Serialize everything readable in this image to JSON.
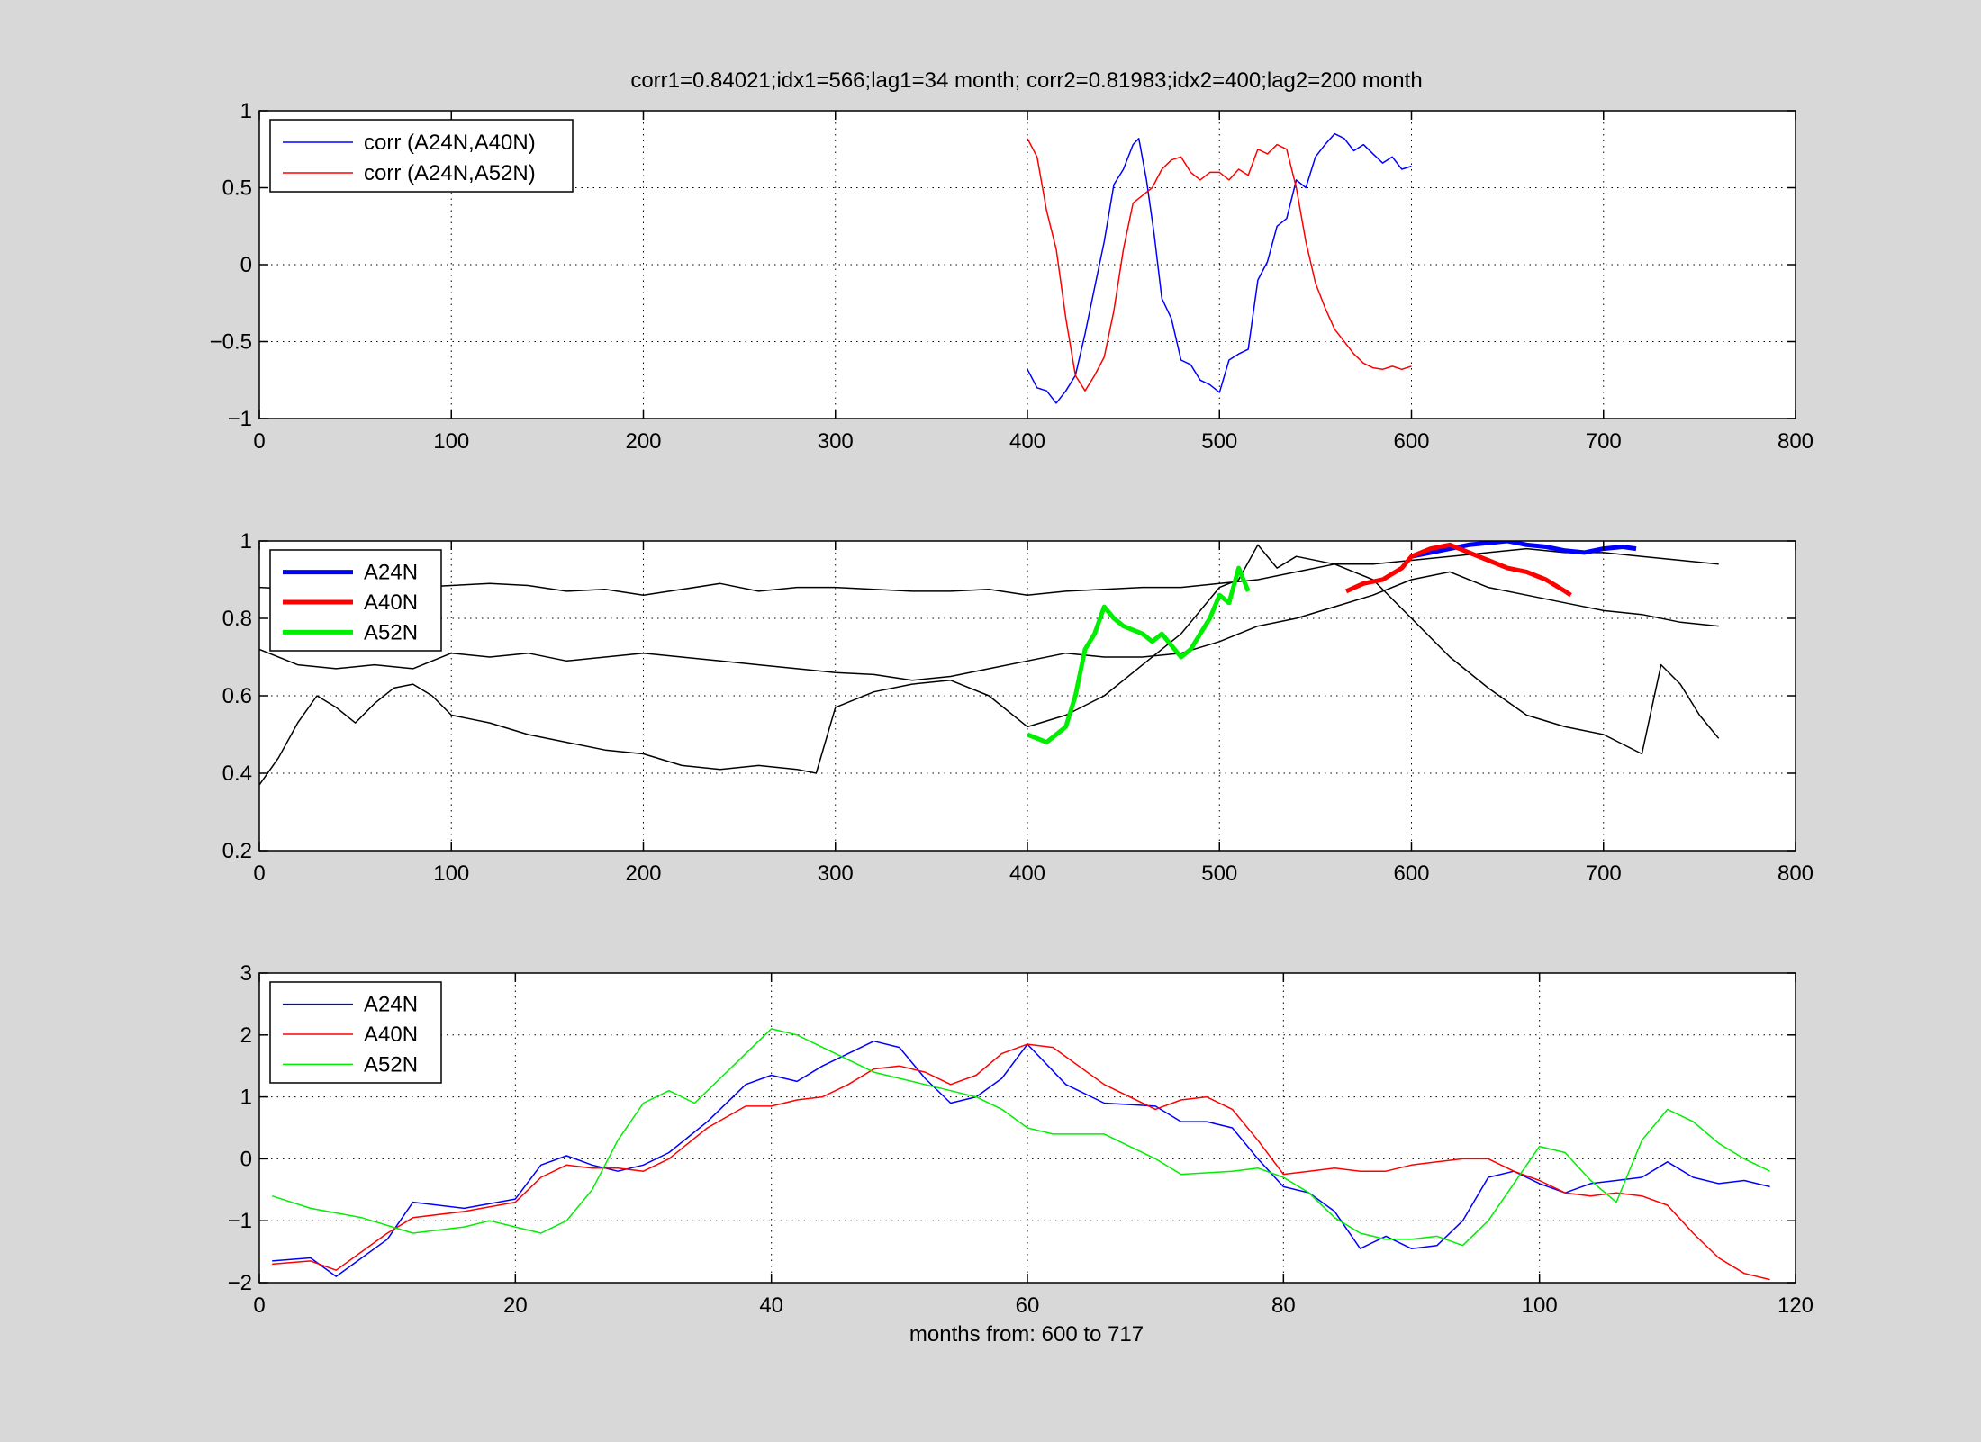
{
  "figure": {
    "title": "corr1=0.84021;idx1=566;lag1=34 month;   corr2=0.81983;idx2=400;lag2=200 month",
    "xlabel_bottom": "months from: 600 to 717"
  },
  "chart_data": [
    {
      "type": "line",
      "title": "corr1=0.84021;idx1=566;lag1=34 month;   corr2=0.81983;idx2=400;lag2=200 month",
      "xlim": [
        0,
        800
      ],
      "ylim": [
        -1,
        1
      ],
      "xticks": [
        0,
        100,
        200,
        300,
        400,
        500,
        600,
        700,
        800
      ],
      "yticks": [
        -1,
        -0.5,
        0,
        0.5,
        1
      ],
      "yticklabels": [
        "−1",
        "−0.5",
        "0",
        "0.5",
        "1"
      ],
      "grid": true,
      "legend": "top-left",
      "series": [
        {
          "name": "corr (A24N,A40N)",
          "color": "#0000ff",
          "width": 1.5,
          "x": [
            400,
            405,
            410,
            415,
            420,
            425,
            430,
            435,
            440,
            445,
            450,
            455,
            458,
            462,
            466,
            470,
            475,
            480,
            485,
            490,
            495,
            500,
            505,
            510,
            515,
            520,
            525,
            530,
            535,
            540,
            545,
            550,
            555,
            560,
            565,
            570,
            575,
            580,
            585,
            590,
            595,
            600
          ],
          "y": [
            -0.68,
            -0.8,
            -0.82,
            -0.9,
            -0.82,
            -0.72,
            -0.45,
            -0.15,
            0.15,
            0.52,
            0.62,
            0.78,
            0.82,
            0.55,
            0.2,
            -0.22,
            -0.35,
            -0.62,
            -0.65,
            -0.75,
            -0.78,
            -0.83,
            -0.62,
            -0.58,
            -0.55,
            -0.1,
            0.02,
            0.25,
            0.3,
            0.55,
            0.5,
            0.7,
            0.78,
            0.85,
            0.82,
            0.74,
            0.78,
            0.72,
            0.66,
            0.7,
            0.62,
            0.64
          ]
        },
        {
          "name": "corr (A24N,A52N)",
          "color": "#ff0000",
          "width": 1.5,
          "x": [
            400,
            405,
            410,
            415,
            420,
            425,
            430,
            435,
            440,
            445,
            450,
            455,
            460,
            465,
            470,
            475,
            480,
            485,
            490,
            495,
            500,
            505,
            510,
            515,
            520,
            525,
            530,
            535,
            540,
            545,
            550,
            555,
            560,
            565,
            570,
            575,
            580,
            585,
            590,
            595,
            600
          ],
          "y": [
            0.82,
            0.7,
            0.35,
            0.1,
            -0.35,
            -0.72,
            -0.82,
            -0.72,
            -0.6,
            -0.3,
            0.1,
            0.4,
            0.45,
            0.5,
            0.62,
            0.68,
            0.7,
            0.6,
            0.55,
            0.6,
            0.6,
            0.55,
            0.62,
            0.58,
            0.75,
            0.72,
            0.78,
            0.75,
            0.5,
            0.15,
            -0.12,
            -0.28,
            -0.42,
            -0.5,
            -0.58,
            -0.64,
            -0.67,
            -0.68,
            -0.66,
            -0.68,
            -0.66
          ]
        }
      ]
    },
    {
      "type": "line",
      "xlim": [
        0,
        800
      ],
      "ylim": [
        0.2,
        1
      ],
      "xticks": [
        0,
        100,
        200,
        300,
        400,
        500,
        600,
        700,
        800
      ],
      "yticks": [
        0.2,
        0.4,
        0.6,
        0.8,
        1
      ],
      "yticklabels": [
        "0.2",
        "0.4",
        "0.6",
        "0.8",
        "1"
      ],
      "grid": true,
      "legend": "top-left",
      "series": [
        {
          "color": "#000000",
          "width": 1.5,
          "x": [
            0,
            20,
            40,
            60,
            80,
            100,
            120,
            140,
            160,
            180,
            200,
            220,
            240,
            260,
            280,
            300,
            320,
            340,
            360,
            380,
            400,
            420,
            440,
            460,
            480,
            500,
            520,
            540,
            560,
            580,
            600,
            620,
            640,
            660,
            680,
            700,
            720,
            740,
            760
          ],
          "y": [
            0.88,
            0.875,
            0.88,
            0.875,
            0.88,
            0.885,
            0.89,
            0.885,
            0.87,
            0.875,
            0.86,
            0.875,
            0.89,
            0.87,
            0.88,
            0.88,
            0.875,
            0.87,
            0.87,
            0.875,
            0.86,
            0.87,
            0.875,
            0.88,
            0.88,
            0.89,
            0.9,
            0.92,
            0.94,
            0.94,
            0.95,
            0.96,
            0.97,
            0.98,
            0.97,
            0.97,
            0.96,
            0.95,
            0.94
          ]
        },
        {
          "color": "#000000",
          "width": 1.5,
          "x": [
            0,
            20,
            40,
            60,
            80,
            100,
            120,
            140,
            160,
            180,
            200,
            220,
            240,
            260,
            280,
            300,
            320,
            340,
            360,
            380,
            400,
            420,
            440,
            460,
            480,
            500,
            520,
            540,
            560,
            580,
            600,
            620,
            640,
            660,
            680,
            700,
            720,
            740,
            760
          ],
          "y": [
            0.72,
            0.68,
            0.67,
            0.68,
            0.67,
            0.71,
            0.7,
            0.71,
            0.69,
            0.7,
            0.71,
            0.7,
            0.69,
            0.68,
            0.67,
            0.66,
            0.655,
            0.64,
            0.65,
            0.67,
            0.69,
            0.71,
            0.7,
            0.7,
            0.71,
            0.74,
            0.78,
            0.8,
            0.83,
            0.86,
            0.9,
            0.92,
            0.88,
            0.86,
            0.84,
            0.82,
            0.81,
            0.79,
            0.78
          ]
        },
        {
          "color": "#000000",
          "width": 1.5,
          "x": [
            0,
            10,
            20,
            30,
            40,
            50,
            60,
            70,
            80,
            90,
            100,
            110,
            120,
            140,
            160,
            180,
            200,
            220,
            240,
            260,
            280,
            290,
            300,
            320,
            340,
            360,
            380,
            400,
            420,
            440,
            460,
            480,
            500,
            510,
            520,
            530,
            540,
            560,
            580,
            600,
            620,
            640,
            660,
            680,
            700,
            720,
            730,
            740,
            750,
            760
          ],
          "y": [
            0.37,
            0.44,
            0.53,
            0.6,
            0.57,
            0.53,
            0.58,
            0.62,
            0.63,
            0.6,
            0.55,
            0.54,
            0.53,
            0.5,
            0.48,
            0.46,
            0.45,
            0.42,
            0.41,
            0.42,
            0.41,
            0.4,
            0.57,
            0.61,
            0.63,
            0.64,
            0.6,
            0.52,
            0.55,
            0.6,
            0.68,
            0.76,
            0.88,
            0.9,
            0.99,
            0.93,
            0.96,
            0.94,
            0.9,
            0.8,
            0.7,
            0.62,
            0.55,
            0.52,
            0.5,
            0.45,
            0.68,
            0.63,
            0.55,
            0.49
          ]
        },
        {
          "name": "A24N",
          "color": "#0000ff",
          "width": 5,
          "x": [
            600,
            610,
            620,
            630,
            640,
            650,
            660,
            670,
            680,
            690,
            700,
            710,
            717
          ],
          "y": [
            0.96,
            0.97,
            0.98,
            0.99,
            0.995,
            1.0,
            0.99,
            0.985,
            0.975,
            0.97,
            0.98,
            0.985,
            0.98
          ]
        },
        {
          "name": "A40N",
          "color": "#ff0000",
          "width": 5,
          "x": [
            566,
            575,
            585,
            595,
            600,
            610,
            620,
            630,
            640,
            650,
            660,
            670,
            680,
            683
          ],
          "y": [
            0.87,
            0.89,
            0.9,
            0.93,
            0.96,
            0.98,
            0.99,
            0.97,
            0.95,
            0.93,
            0.92,
            0.9,
            0.87,
            0.86
          ]
        },
        {
          "name": "A52N",
          "color": "#00ee00",
          "width": 5,
          "x": [
            400,
            405,
            410,
            415,
            420,
            425,
            430,
            435,
            440,
            445,
            450,
            455,
            460,
            465,
            470,
            475,
            480,
            485,
            490,
            495,
            500,
            505,
            510,
            515
          ],
          "y": [
            0.5,
            0.49,
            0.48,
            0.5,
            0.52,
            0.6,
            0.72,
            0.76,
            0.83,
            0.8,
            0.78,
            0.77,
            0.76,
            0.74,
            0.76,
            0.73,
            0.7,
            0.72,
            0.76,
            0.8,
            0.86,
            0.84,
            0.93,
            0.87
          ]
        }
      ]
    },
    {
      "type": "line",
      "xlabel": "months from: 600 to 717",
      "xlim": [
        0,
        120
      ],
      "ylim": [
        -2,
        3
      ],
      "xticks": [
        0,
        20,
        40,
        60,
        80,
        100,
        120
      ],
      "yticks": [
        -2,
        -1,
        0,
        1,
        2,
        3
      ],
      "yticklabels": [
        "−2",
        "−1",
        "0",
        "1",
        "2",
        "3"
      ],
      "grid": true,
      "legend": "top-left",
      "series": [
        {
          "name": "A24N",
          "color": "#0000ff",
          "width": 1.5,
          "x": [
            1,
            4,
            6,
            10,
            12,
            16,
            20,
            22,
            24,
            26,
            28,
            30,
            32,
            35,
            38,
            40,
            42,
            44,
            46,
            48,
            50,
            52,
            54,
            56,
            58,
            60,
            63,
            66,
            70,
            72,
            74,
            76,
            78,
            80,
            82,
            84,
            86,
            88,
            90,
            92,
            94,
            96,
            98,
            100,
            102,
            104,
            106,
            108,
            110,
            112,
            114,
            116,
            118
          ],
          "y": [
            -1.65,
            -1.6,
            -1.9,
            -1.3,
            -0.7,
            -0.8,
            -0.65,
            -0.1,
            0.05,
            -0.1,
            -0.2,
            -0.1,
            0.1,
            0.6,
            1.2,
            1.35,
            1.25,
            1.5,
            1.7,
            1.9,
            1.8,
            1.3,
            0.9,
            1.0,
            1.3,
            1.85,
            1.2,
            0.9,
            0.85,
            0.6,
            0.6,
            0.5,
            0.0,
            -0.45,
            -0.55,
            -0.85,
            -1.45,
            -1.25,
            -1.45,
            -1.4,
            -1.0,
            -0.3,
            -0.2,
            -0.4,
            -0.55,
            -0.4,
            -0.35,
            -0.3,
            -0.05,
            -0.3,
            -0.4,
            -0.35,
            -0.45
          ]
        },
        {
          "name": "A40N",
          "color": "#ff0000",
          "width": 1.5,
          "x": [
            1,
            4,
            6,
            10,
            12,
            16,
            20,
            22,
            24,
            26,
            28,
            30,
            32,
            35,
            38,
            40,
            42,
            44,
            46,
            48,
            50,
            52,
            54,
            56,
            58,
            60,
            62,
            66,
            70,
            72,
            74,
            76,
            78,
            80,
            82,
            84,
            86,
            88,
            90,
            92,
            94,
            96,
            98,
            100,
            102,
            104,
            106,
            108,
            110,
            112,
            114,
            116,
            118
          ],
          "y": [
            -1.7,
            -1.65,
            -1.8,
            -1.2,
            -0.95,
            -0.85,
            -0.7,
            -0.3,
            -0.1,
            -0.15,
            -0.15,
            -0.2,
            0.0,
            0.5,
            0.85,
            0.85,
            0.95,
            1.0,
            1.2,
            1.45,
            1.5,
            1.4,
            1.2,
            1.35,
            1.7,
            1.85,
            1.8,
            1.2,
            0.8,
            0.95,
            1.0,
            0.8,
            0.3,
            -0.25,
            -0.2,
            -0.15,
            -0.2,
            -0.2,
            -0.1,
            -0.05,
            0.0,
            0.0,
            -0.2,
            -0.35,
            -0.55,
            -0.6,
            -0.55,
            -0.6,
            -0.75,
            -1.2,
            -1.6,
            -1.85,
            -1.95
          ]
        },
        {
          "name": "A52N",
          "color": "#00ee00",
          "width": 1.5,
          "x": [
            1,
            4,
            8,
            12,
            16,
            18,
            20,
            22,
            24,
            26,
            28,
            30,
            32,
            34,
            36,
            38,
            40,
            42,
            44,
            46,
            48,
            50,
            52,
            54,
            56,
            58,
            60,
            62,
            66,
            70,
            72,
            76,
            78,
            80,
            82,
            84,
            86,
            88,
            90,
            92,
            94,
            96,
            98,
            100,
            102,
            104,
            106,
            108,
            110,
            112,
            114,
            116,
            118
          ],
          "y": [
            -0.6,
            -0.8,
            -0.95,
            -1.2,
            -1.1,
            -1.0,
            -1.1,
            -1.2,
            -1.0,
            -0.5,
            0.3,
            0.9,
            1.1,
            0.9,
            1.3,
            1.7,
            2.1,
            2.0,
            1.8,
            1.6,
            1.4,
            1.3,
            1.2,
            1.1,
            1.0,
            0.8,
            0.5,
            0.4,
            0.4,
            0.0,
            -0.25,
            -0.2,
            -0.15,
            -0.3,
            -0.55,
            -0.95,
            -1.2,
            -1.3,
            -1.3,
            -1.25,
            -1.4,
            -1.0,
            -0.4,
            0.2,
            0.1,
            -0.35,
            -0.7,
            0.3,
            0.8,
            0.6,
            0.25,
            0.0,
            -0.2
          ]
        }
      ]
    }
  ]
}
